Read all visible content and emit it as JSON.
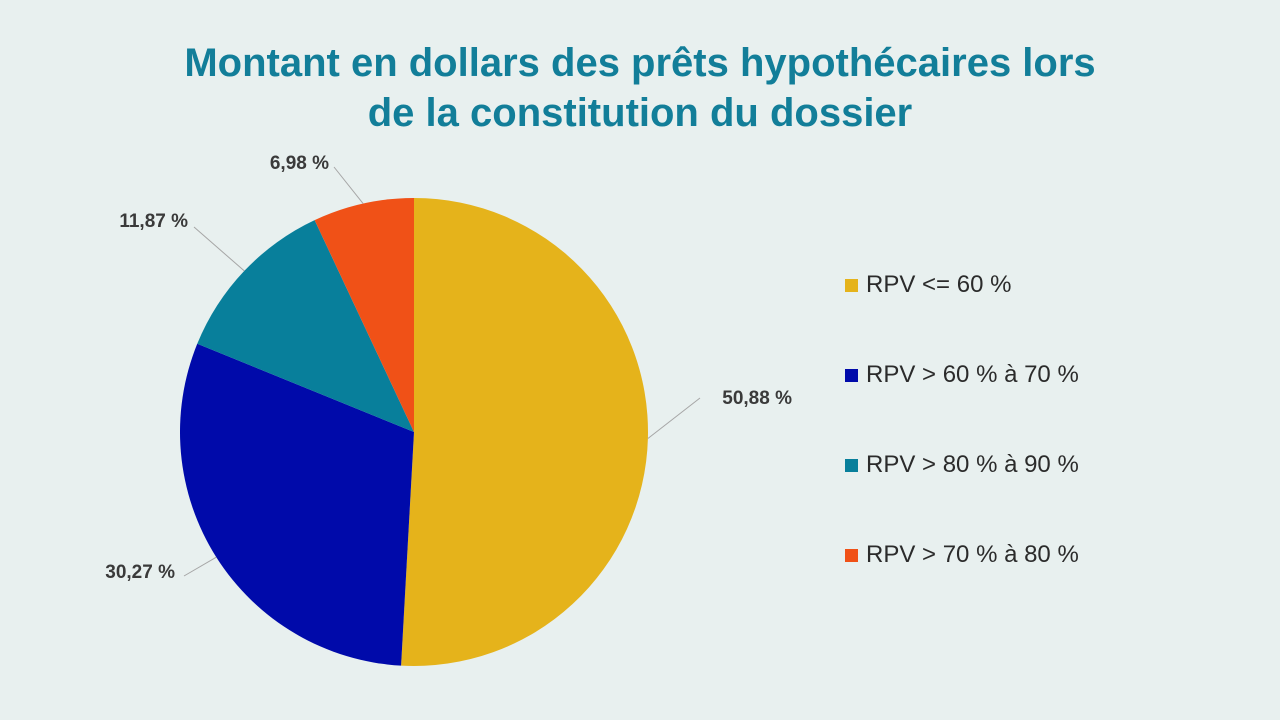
{
  "chart_data": {
    "type": "pie",
    "title": [
      "Montant en dollars des prêts hypothécaires lors",
      "de la constitution du dossier"
    ],
    "slices": [
      {
        "name": "RPV <= 60 %",
        "value": 50.88,
        "label": "50,88 %",
        "color": "#e5b31b"
      },
      {
        "name": "RPV > 60 % à 70 %",
        "value": 30.27,
        "label": "30,27 %",
        "color": "#000aaa"
      },
      {
        "name": "RPV > 80 % à 90 %",
        "value": 11.87,
        "label": "11,87 %",
        "color": "#087f9b"
      },
      {
        "name": "RPV > 70 % à 80 %",
        "value": 6.98,
        "label": "6,98 %",
        "color": "#f05117"
      }
    ],
    "legend": {
      "position": "right",
      "items": [
        {
          "label": "RPV <= 60 %",
          "color": "#e5b31b"
        },
        {
          "label": "RPV > 60 % à 70 %",
          "color": "#000aaa"
        },
        {
          "label": "RPV > 80 % à 90 %",
          "color": "#087f9b"
        },
        {
          "label": "RPV > 70 % à 80 %",
          "color": "#f05117"
        }
      ]
    }
  }
}
